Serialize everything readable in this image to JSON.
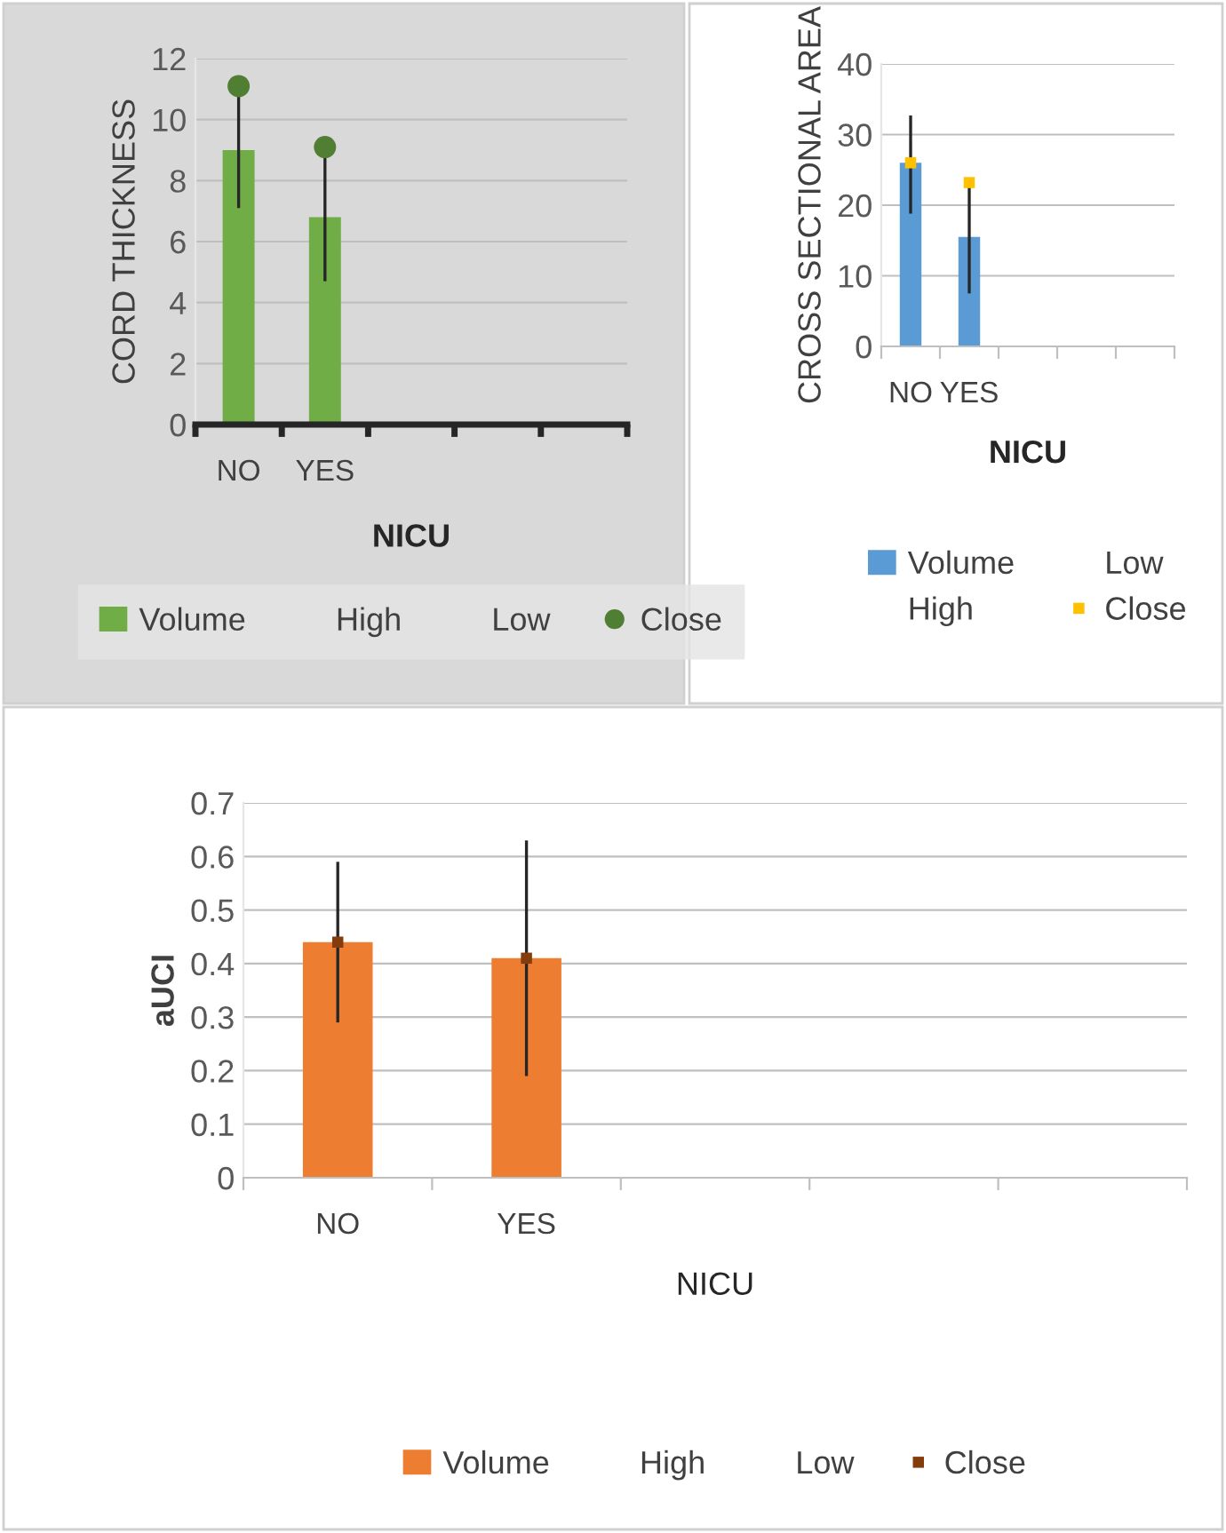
{
  "chart_data": [
    {
      "type": "bar",
      "xlabel": "NICU",
      "ylabel": "CORD THICKNESS",
      "categories": [
        "NO",
        "YES",
        null,
        null,
        null
      ],
      "ylim": [
        0,
        12
      ],
      "yticks": [
        0,
        2,
        4,
        6,
        8,
        10,
        12
      ],
      "grid": "y",
      "legend": "bottom",
      "series": [
        {
          "name": "Volume",
          "color": "#70ad47",
          "values": [
            9.0,
            6.8,
            null,
            null,
            null
          ]
        },
        {
          "name": "High",
          "values": [
            null,
            null,
            null,
            null,
            null
          ]
        },
        {
          "name": "Low",
          "values": [
            null,
            null,
            null,
            null,
            null
          ]
        },
        {
          "name": "Close",
          "type": "scatter",
          "marker": "circle",
          "color": "#507e32",
          "values": [
            11.1,
            9.1,
            null,
            null,
            null
          ],
          "errors": [
            [
              7.1,
              11.1
            ],
            [
              4.7,
              9.1
            ],
            null,
            null,
            null
          ]
        }
      ]
    },
    {
      "type": "bar",
      "xlabel": "NICU",
      "ylabel": "CROSS SECTIONAL AREA",
      "categories": [
        "NO",
        "YES",
        null,
        null,
        null
      ],
      "ylim": [
        0,
        40
      ],
      "yticks": [
        0,
        10,
        20,
        30,
        40
      ],
      "grid": "y",
      "legend": "bottom",
      "series": [
        {
          "name": "Volume",
          "color": "#5b9bd5",
          "values": [
            26,
            15.5,
            null,
            null,
            null
          ]
        },
        {
          "name": "High",
          "values": [
            null,
            null,
            null,
            null,
            null
          ]
        },
        {
          "name": "Low",
          "values": [
            null,
            null,
            null,
            null,
            null
          ]
        },
        {
          "name": "Close",
          "type": "scatter",
          "marker": "square",
          "color": "#ffc000",
          "values": [
            26,
            23.2,
            null,
            null,
            null
          ],
          "errors": [
            [
              18.8,
              32.7
            ],
            [
              7.5,
              23.2
            ],
            null,
            null,
            null
          ]
        }
      ]
    },
    {
      "type": "bar",
      "xlabel": "NICU",
      "ylabel": "aUCI",
      "categories": [
        "NO",
        "YES",
        null,
        null,
        null
      ],
      "ylim": [
        0,
        0.7
      ],
      "yticks": [
        0,
        0.1,
        0.2,
        0.3,
        0.4,
        0.5,
        0.6,
        0.7
      ],
      "grid": "y",
      "legend": "bottom",
      "series": [
        {
          "name": "Volume",
          "color": "#ed7d31",
          "values": [
            0.44,
            0.41,
            null,
            null,
            null
          ]
        },
        {
          "name": "High",
          "values": [
            null,
            null,
            null,
            null,
            null
          ]
        },
        {
          "name": "Low",
          "values": [
            null,
            null,
            null,
            null,
            null
          ]
        },
        {
          "name": "Close",
          "type": "scatter",
          "marker": "square",
          "color": "#843c0c",
          "values": [
            0.44,
            0.41,
            null,
            null,
            null
          ],
          "errors": [
            [
              0.29,
              0.59
            ],
            [
              0.19,
              0.63
            ],
            null,
            null,
            null
          ]
        }
      ]
    }
  ]
}
